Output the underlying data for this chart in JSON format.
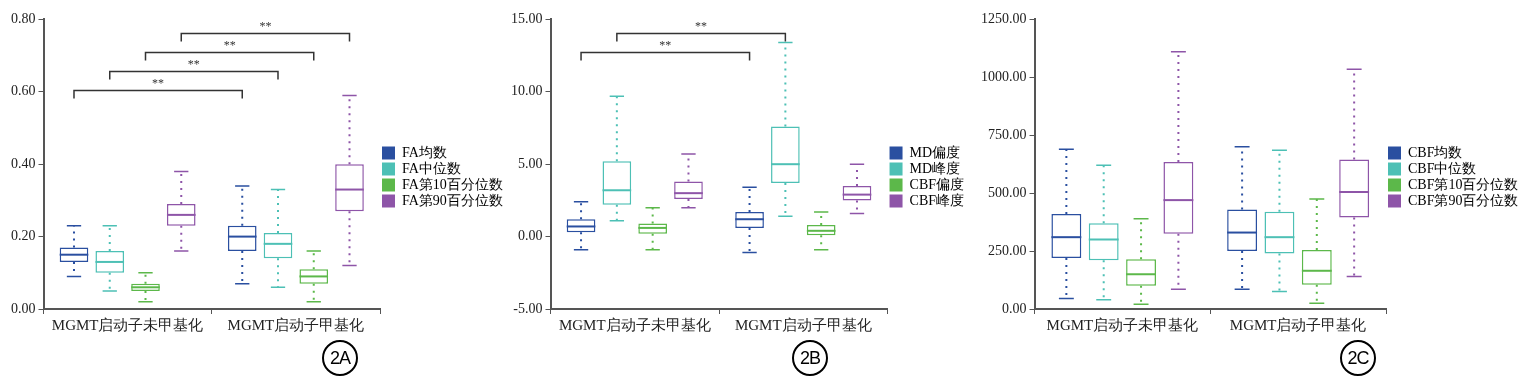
{
  "chart_data": [
    {
      "type": "box",
      "title": "2A",
      "categories": [
        "MGMT启动子未甲基化",
        "MGMT启动子甲基化"
      ],
      "ylim": [
        0,
        0.8
      ],
      "yticks": [
        {
          "value": 0,
          "label": "0.00"
        },
        {
          "value": 0.2,
          "label": "0.20"
        },
        {
          "value": 0.4,
          "label": "0.40"
        },
        {
          "value": 0.6,
          "label": "0.60"
        },
        {
          "value": 0.8,
          "label": "0.80"
        }
      ],
      "grid": false,
      "legend": "right",
      "annotations": [
        "**",
        "**",
        "**",
        "**"
      ],
      "series": [
        {
          "name": "FA均数",
          "color": "#2a4fa0",
          "boxes": [
            {
              "low": 0.09,
              "q1": 0.13,
              "median": 0.15,
              "q3": 0.17,
              "high": 0.23
            },
            {
              "low": 0.07,
              "q1": 0.16,
              "median": 0.2,
              "q3": 0.23,
              "high": 0.34
            }
          ]
        },
        {
          "name": "FA中位数",
          "color": "#4dc0b5",
          "boxes": [
            {
              "low": 0.05,
              "q1": 0.1,
              "median": 0.13,
              "q3": 0.16,
              "high": 0.23
            },
            {
              "low": 0.06,
              "q1": 0.14,
              "median": 0.18,
              "q3": 0.21,
              "high": 0.33
            }
          ]
        },
        {
          "name": "FA第10百分位数",
          "color": "#5cb84a",
          "boxes": [
            {
              "low": 0.02,
              "q1": 0.05,
              "median": 0.06,
              "q3": 0.07,
              "high": 0.1
            },
            {
              "low": 0.02,
              "q1": 0.07,
              "median": 0.09,
              "q3": 0.11,
              "high": 0.16
            }
          ]
        },
        {
          "name": "FA第90百分位数",
          "color": "#8e55a8",
          "boxes": [
            {
              "low": 0.16,
              "q1": 0.23,
              "median": 0.26,
              "q3": 0.29,
              "high": 0.38
            },
            {
              "low": 0.12,
              "q1": 0.27,
              "median": 0.33,
              "q3": 0.4,
              "high": 0.59
            }
          ]
        }
      ]
    },
    {
      "type": "box",
      "title": "2B",
      "categories": [
        "MGMT启动子未甲基化",
        "MGMT启动子甲基化"
      ],
      "ylim": [
        -5,
        15
      ],
      "yticks": [
        {
          "value": -5,
          "label": "-5.00"
        },
        {
          "value": 0,
          "label": "0.00"
        },
        {
          "value": 5,
          "label": "5.00"
        },
        {
          "value": 10,
          "label": "10.00"
        },
        {
          "value": 15,
          "label": "15.00"
        }
      ],
      "grid": false,
      "legend": "right",
      "annotations": [
        "**",
        "**"
      ],
      "series": [
        {
          "name": "MD偏度",
          "color": "#2a4fa0",
          "boxes": [
            {
              "low": -0.9,
              "q1": 0.3,
              "median": 0.7,
              "q3": 1.2,
              "high": 2.4
            },
            {
              "low": -1.1,
              "q1": 0.6,
              "median": 1.2,
              "q3": 1.7,
              "high": 3.4
            }
          ]
        },
        {
          "name": "MD峰度",
          "color": "#4dc0b5",
          "boxes": [
            {
              "low": 1.1,
              "q1": 2.2,
              "median": 3.2,
              "q3": 5.2,
              "high": 9.7
            },
            {
              "low": 1.4,
              "q1": 3.7,
              "median": 5,
              "q3": 7.6,
              "high": 13.4
            }
          ]
        },
        {
          "name": "CBF偏度",
          "color": "#5cb84a",
          "boxes": [
            {
              "low": -0.9,
              "q1": 0.2,
              "median": 0.6,
              "q3": 0.9,
              "high": 2
            },
            {
              "low": -0.9,
              "q1": 0.1,
              "median": 0.4,
              "q3": 0.8,
              "high": 1.7
            }
          ]
        },
        {
          "name": "CBF峰度",
          "color": "#8e55a8",
          "boxes": [
            {
              "low": 2,
              "q1": 2.6,
              "median": 3,
              "q3": 3.8,
              "high": 5.7
            },
            {
              "low": 1.6,
              "q1": 2.5,
              "median": 2.9,
              "q3": 3.5,
              "high": 5
            }
          ]
        }
      ]
    },
    {
      "type": "box",
      "title": "2C",
      "categories": [
        "MGMT启动子未甲基化",
        "MGMT启动子甲基化"
      ],
      "ylim": [
        0,
        1250
      ],
      "yticks": [
        {
          "value": 0,
          "label": "0.00"
        },
        {
          "value": 250,
          "label": "250.00"
        },
        {
          "value": 500,
          "label": "500.00"
        },
        {
          "value": 750,
          "label": "750.00"
        },
        {
          "value": 1000,
          "label": "1000.00"
        },
        {
          "value": 1250,
          "label": "1250.00"
        }
      ],
      "grid": false,
      "legend": "right",
      "series": [
        {
          "name": "CBF均数",
          "color": "#2a4fa0",
          "boxes": [
            {
              "low": 45,
              "q1": 220,
              "median": 310,
              "q3": 410,
              "high": 690
            },
            {
              "low": 85,
              "q1": 250,
              "median": 330,
              "q3": 430,
              "high": 700
            }
          ]
        },
        {
          "name": "CBF中位数",
          "color": "#4dc0b5",
          "boxes": [
            {
              "low": 40,
              "q1": 210,
              "median": 300,
              "q3": 370,
              "high": 620
            },
            {
              "low": 75,
              "q1": 240,
              "median": 310,
              "q3": 420,
              "high": 685
            }
          ]
        },
        {
          "name": "CBF第10百分位数",
          "color": "#5cb84a",
          "boxes": [
            {
              "low": 20,
              "q1": 100,
              "median": 150,
              "q3": 215,
              "high": 390
            },
            {
              "low": 25,
              "q1": 105,
              "median": 165,
              "q3": 255,
              "high": 475
            }
          ]
        },
        {
          "name": "CBF第90百分位数",
          "color": "#8e55a8",
          "boxes": [
            {
              "low": 85,
              "q1": 325,
              "median": 470,
              "q3": 635,
              "high": 1110
            },
            {
              "low": 140,
              "q1": 395,
              "median": 505,
              "q3": 645,
              "high": 1035
            }
          ]
        }
      ]
    }
  ]
}
